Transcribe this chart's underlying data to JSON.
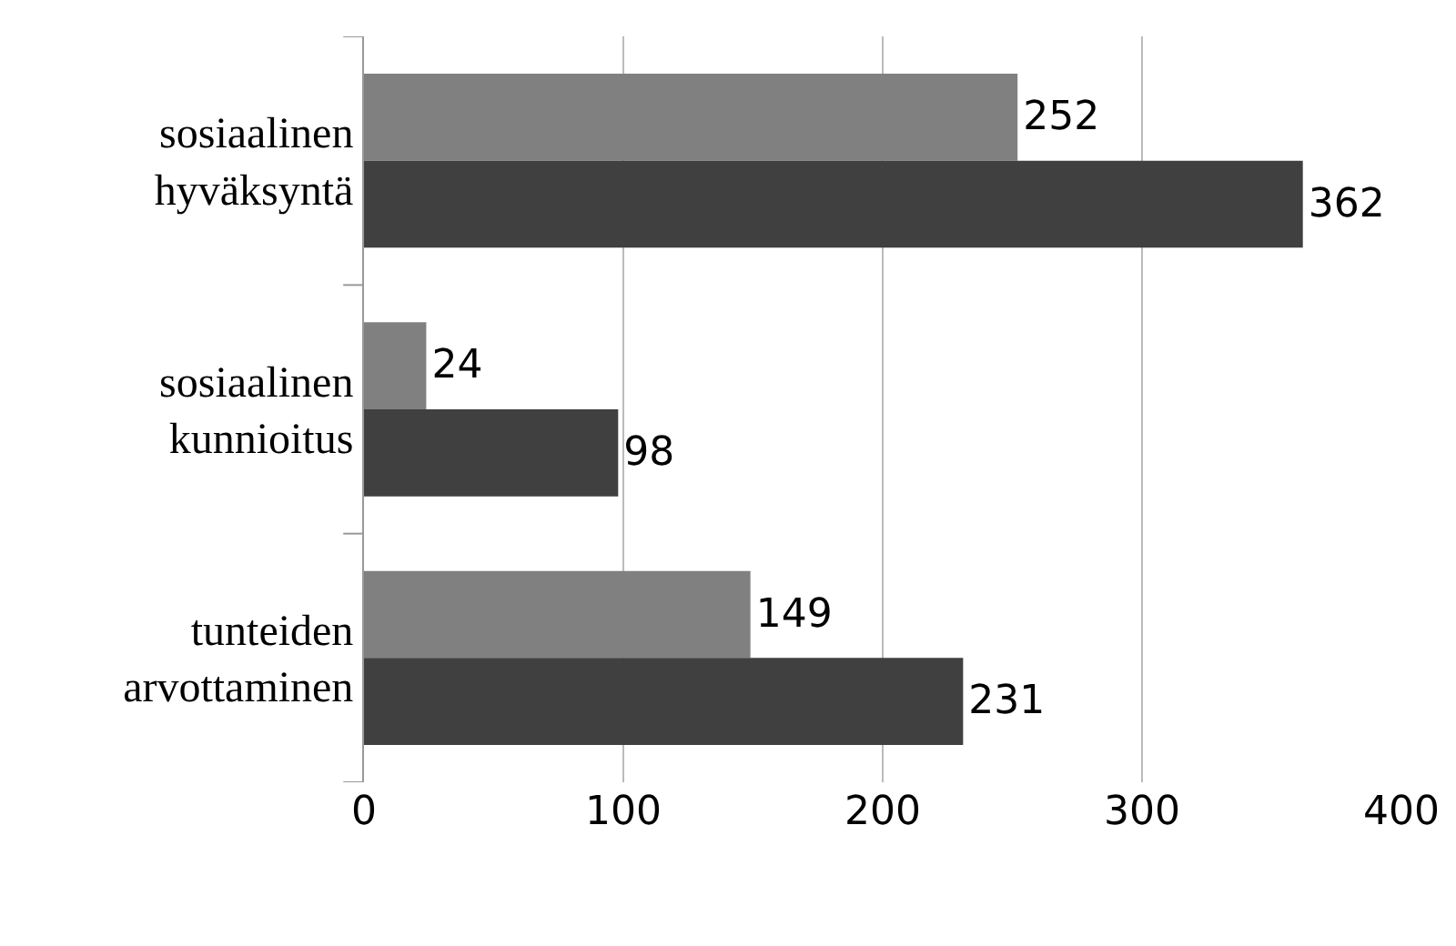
{
  "chart_data": {
    "type": "bar",
    "orientation": "horizontal",
    "categories": [
      "sosiaalinen hyväksyntä",
      "sosiaalinen kunnioitus",
      "tunteiden arvottaminen"
    ],
    "series": [
      {
        "color": "#808080",
        "values": [
          252,
          24,
          149
        ]
      },
      {
        "color": "#404040",
        "values": [
          362,
          98,
          231
        ]
      }
    ],
    "xlim": [
      0,
      400
    ],
    "xticks": [
      0,
      100,
      200,
      300,
      400
    ],
    "grid": "x",
    "data_labels": true
  }
}
